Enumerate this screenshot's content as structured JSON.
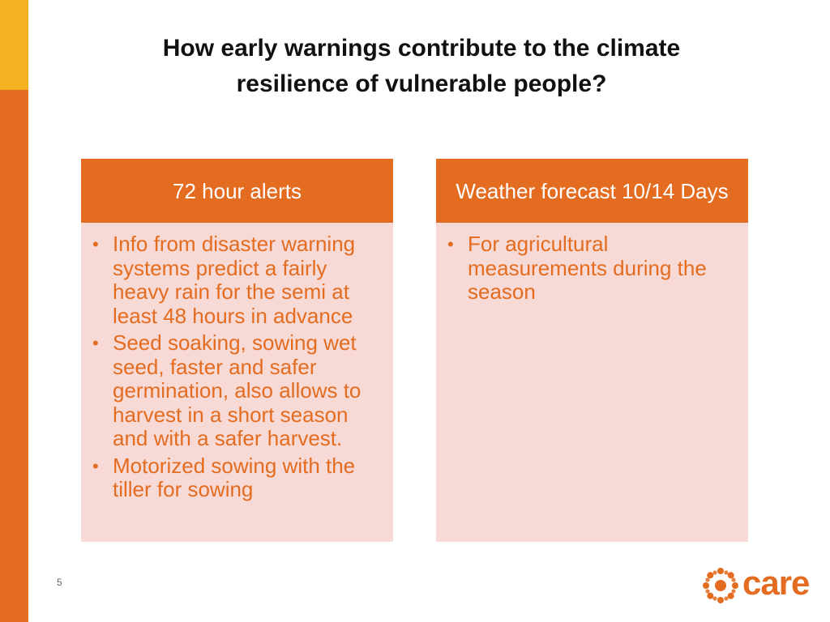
{
  "slide": {
    "title": "How early warnings contribute to the climate\nresilience of vulnerable people?",
    "page_number": "5"
  },
  "cards": [
    {
      "header": "72 hour alerts",
      "bullets": [
        "Info from disaster warning systems predict a fairly heavy rain for the semi at least 48 hours in advance",
        "Seed soaking, sowing wet seed, faster and safer germination, also allows to harvest in a short season and with a safer harvest.",
        "Motorized sowing with the tiller for sowing"
      ]
    },
    {
      "header": "Weather forecast 10/14 Days",
      "bullets": [
        "For agricultural measurements during the season"
      ]
    }
  ],
  "logo": {
    "text": "care",
    "icon": "care-logo-icon"
  },
  "colors": {
    "accent": "#E36C21",
    "accent_yellow": "#F4B223",
    "card_bg": "#F7DAD5"
  }
}
